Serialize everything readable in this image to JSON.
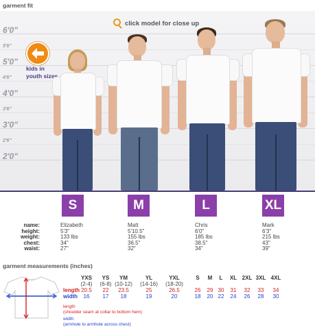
{
  "title": "garment fit",
  "zoom_hint": "click model for close up",
  "height_marks": [
    {
      "label": "6'0\"",
      "kind": "major"
    },
    {
      "label": "5'6\"",
      "kind": "minor"
    },
    {
      "label": "5'0\"",
      "kind": "major"
    },
    {
      "label": "4'6\"",
      "kind": "minor"
    },
    {
      "label": "4'0\"",
      "kind": "major"
    },
    {
      "label": "3'6\"",
      "kind": "minor"
    },
    {
      "label": "3'0\"",
      "kind": "major"
    },
    {
      "label": "2'6\"",
      "kind": "minor"
    },
    {
      "label": "2'0\"",
      "kind": "major"
    }
  ],
  "kids_link": "kids in youth sizes",
  "stat_labels": [
    "name:",
    "height:",
    "weight:",
    "chest:",
    "waist:"
  ],
  "models": [
    {
      "size": "S",
      "name": "Elizabeth",
      "height": "5'3\"",
      "weight": "133 lbs",
      "chest": "34\"",
      "waist": "27\""
    },
    {
      "size": "M",
      "name": "Matt",
      "height": "5'10.5\"",
      "weight": "155 lbs",
      "chest": "36.5\"",
      "waist": "32\""
    },
    {
      "size": "L",
      "name": "Chris",
      "height": "6'0\"",
      "weight": "185 lbs",
      "chest": "38.5\"",
      "waist": "34\""
    },
    {
      "size": "XL",
      "name": "Mark",
      "height": "6'3\"",
      "weight": "215 lbs",
      "chest": "43\"",
      "waist": "39\""
    }
  ],
  "measurements": {
    "title": "garment measurements (inches)",
    "row_labels": {
      "length": "length",
      "width": "width"
    },
    "youth_sizes": [
      {
        "size": "YXS",
        "range": "(2-4)",
        "length": "20.5",
        "width": "16"
      },
      {
        "size": "YS",
        "range": "(6-8)",
        "length": "22",
        "width": "17"
      },
      {
        "size": "YM",
        "range": "(10-12)",
        "length": "23.5",
        "width": "18"
      },
      {
        "size": "YL",
        "range": "(14-16)",
        "length": "25",
        "width": "19"
      },
      {
        "size": "YXL",
        "range": "(18-20)",
        "length": "26.5",
        "width": "20"
      }
    ],
    "adult_sizes": [
      {
        "size": "S",
        "length": "26",
        "width": "18"
      },
      {
        "size": "M",
        "length": "29",
        "width": "20"
      },
      {
        "size": "L",
        "length": "30",
        "width": "22"
      },
      {
        "size": "XL",
        "length": "31",
        "width": "24"
      },
      {
        "size": "2XL",
        "length": "32",
        "width": "26"
      },
      {
        "size": "3XL",
        "length": "33",
        "width": "28"
      },
      {
        "size": "4XL",
        "length": "34",
        "width": "30"
      }
    ],
    "length_note_title": "length",
    "length_note": "(shoulder seam at collar to bottom hem)",
    "width_note_title": "width",
    "width_note": "(armhole to armhole across chest)"
  },
  "colors": {
    "accent": "#8b3fa8",
    "orange": "#f08a12",
    "length": "#d42020",
    "width": "#2244cc"
  }
}
